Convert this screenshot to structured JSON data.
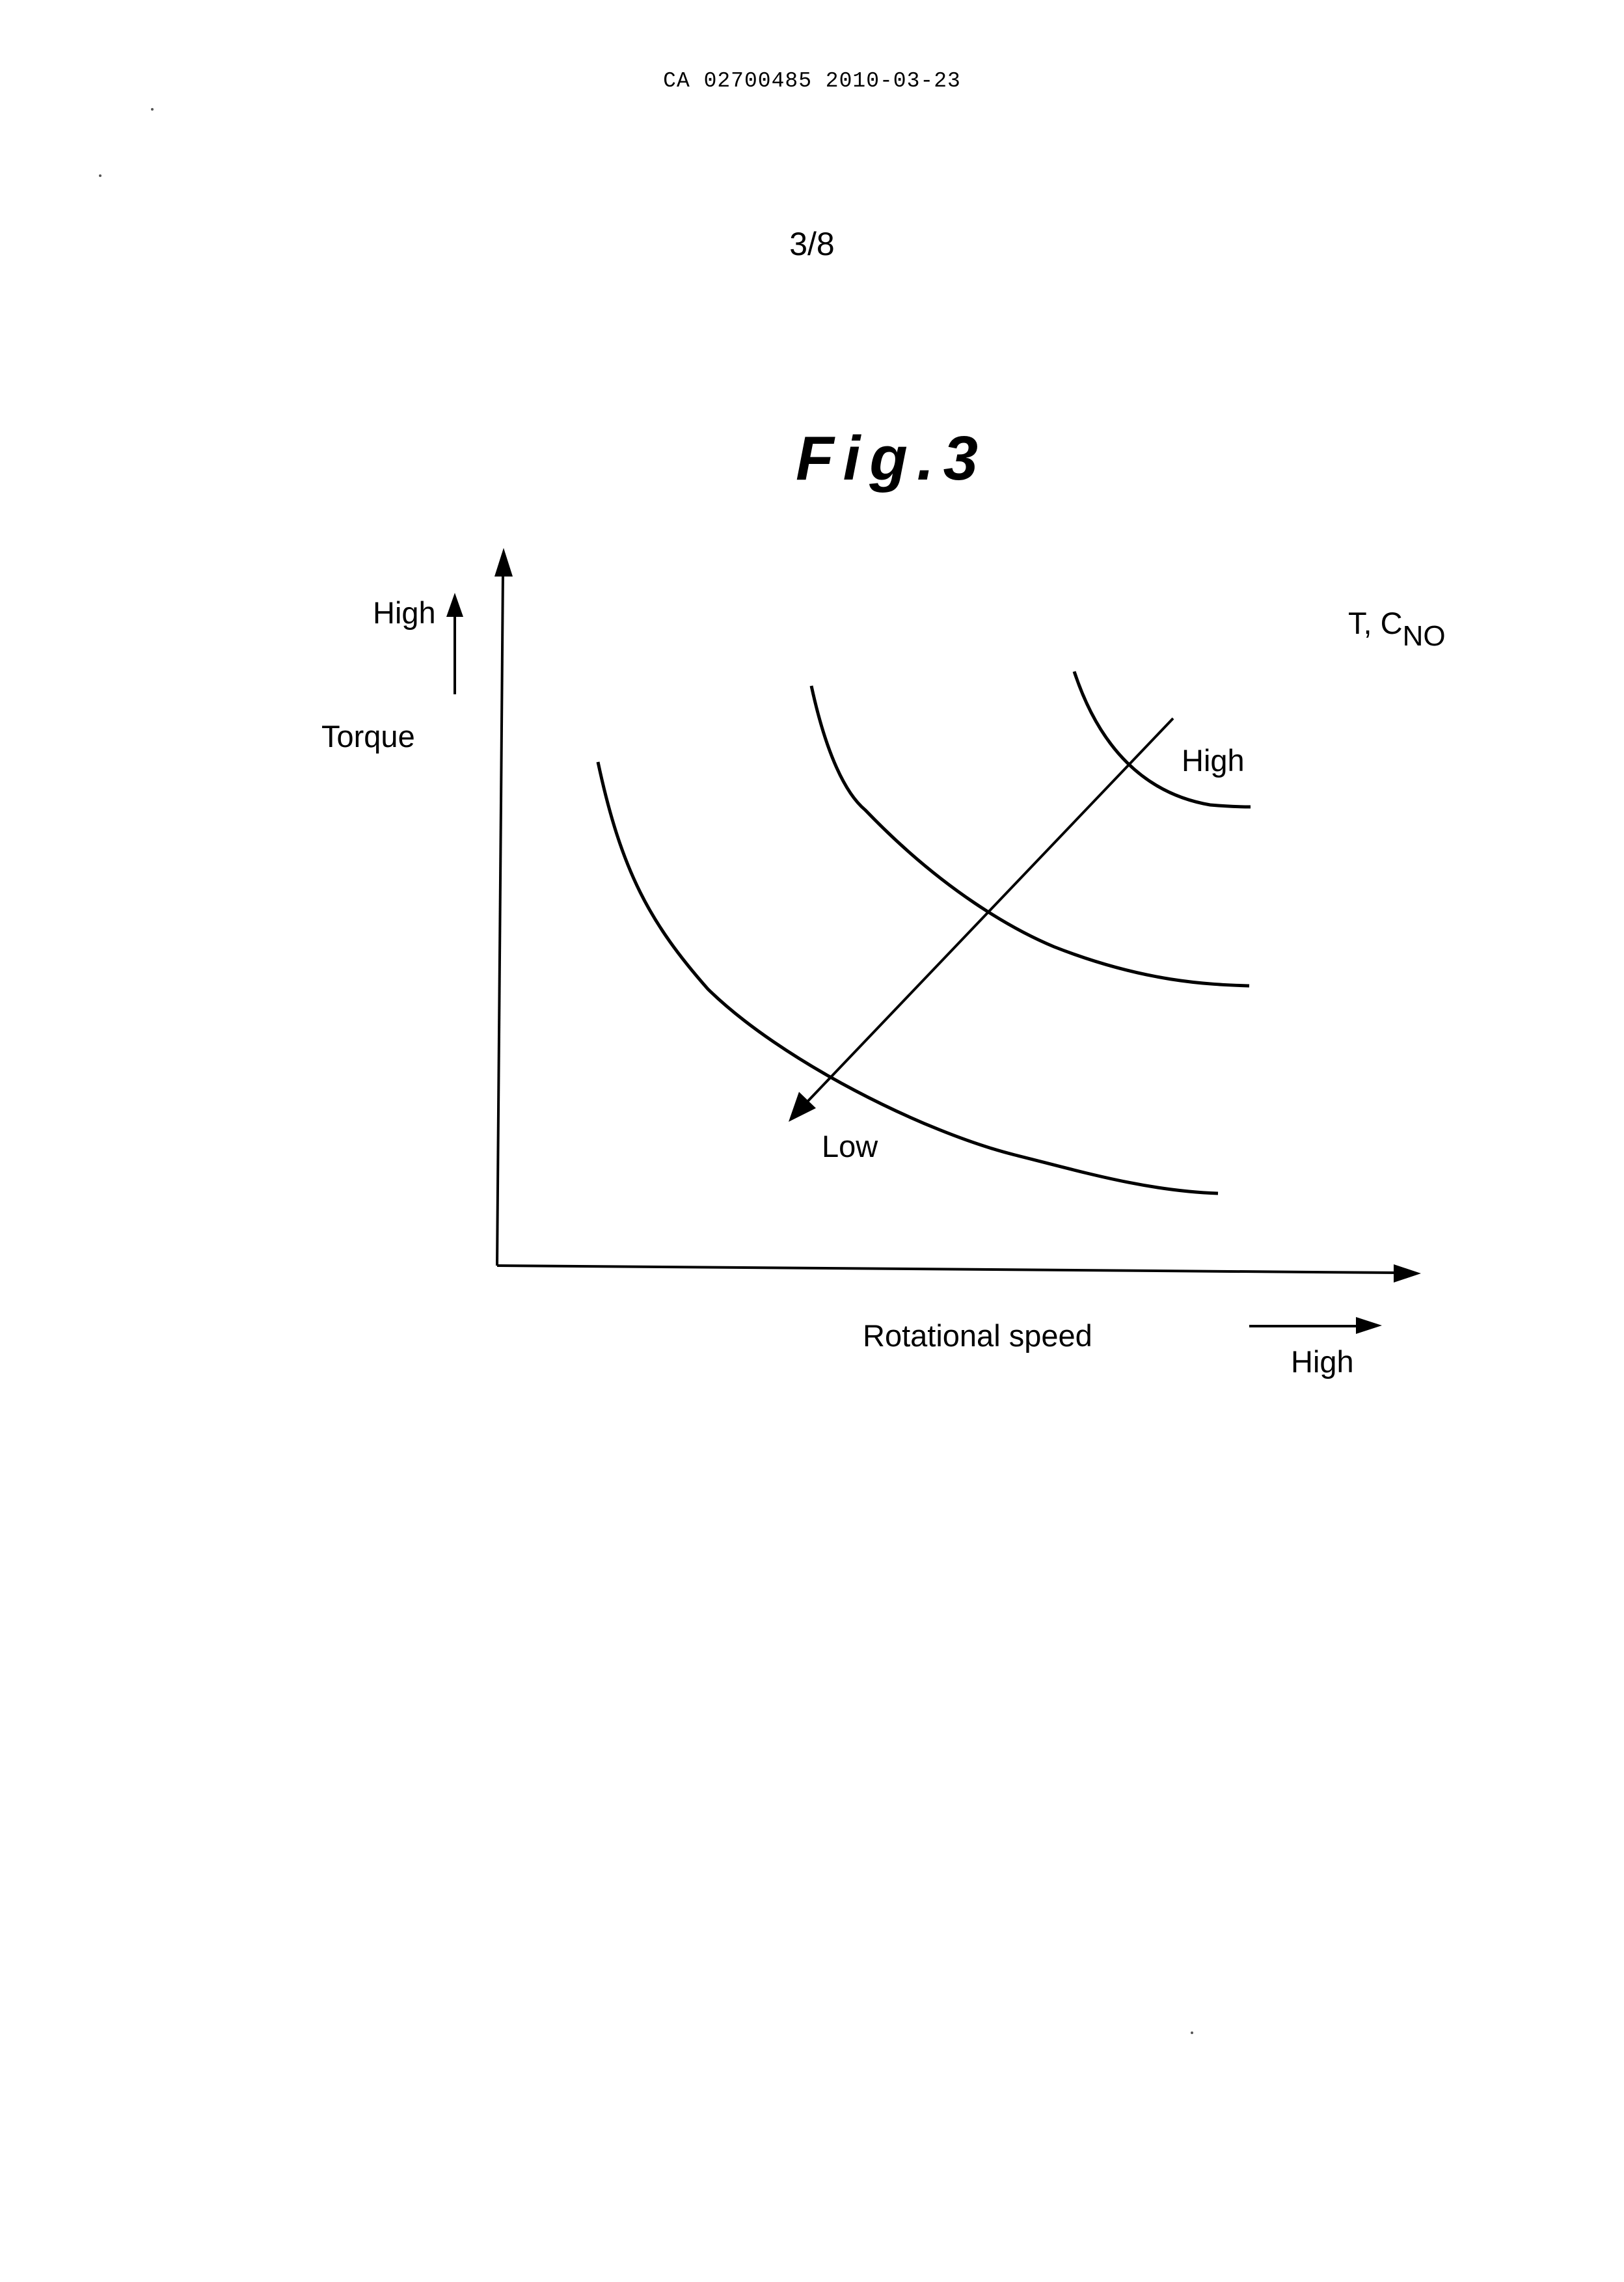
{
  "document": {
    "header_id": "CA 02700485 2010-03-23",
    "page_number": "3/8",
    "figure_label": "Fig.3"
  },
  "figure": {
    "y_axis": {
      "high_label": "High",
      "label": "Torque"
    },
    "x_axis": {
      "label": "Rotational speed",
      "high_label": "High"
    },
    "series_parameter": {
      "symbol": "T, C",
      "subscript": "NO"
    },
    "diagonal_arrow": {
      "high_label": "High",
      "low_label": "Low"
    },
    "curve_count": 3
  }
}
